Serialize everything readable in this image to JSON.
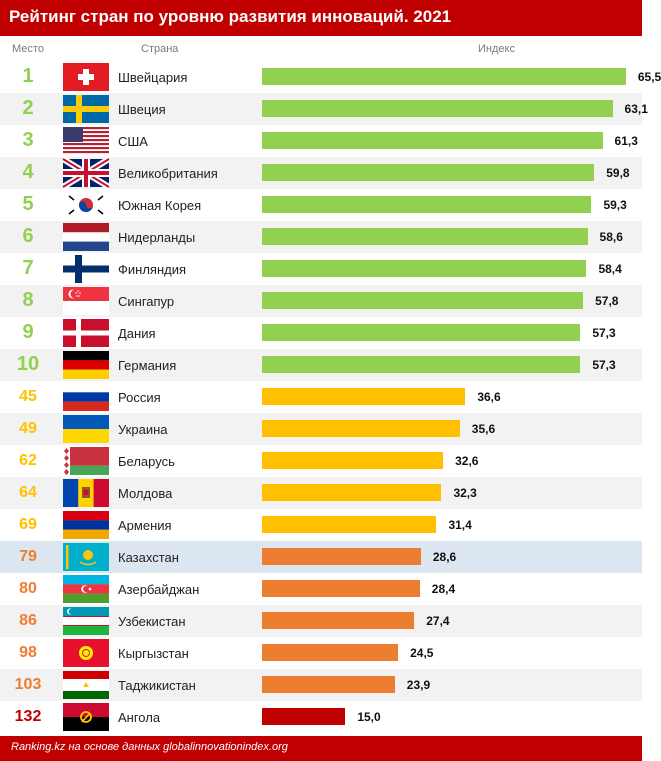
{
  "title": "Рейтинг стран по уровню развития инноваций. 2021",
  "columns": {
    "rank": "Место",
    "country": "Страна",
    "index": "Индекс"
  },
  "footer": "Ranking.kz на основе данных globalinnovationindex.org",
  "colors": {
    "header": "#c00000",
    "green": "#92d050",
    "yellow": "#ffc000",
    "orange": "#ed7d31",
    "red": "#c00000",
    "highlight": "#dce6f0"
  },
  "chart_data": {
    "type": "bar",
    "orientation": "horizontal",
    "title": "Рейтинг стран по уровню развития инноваций. 2021",
    "xlabel": "Индекс",
    "xlim": [
      0,
      72
    ],
    "rows": [
      {
        "rank": "1",
        "country": "Швейцария",
        "value": 65.5,
        "label": "65,5",
        "group": "green",
        "flag": "switzerland-flag"
      },
      {
        "rank": "2",
        "country": "Швеция",
        "value": 63.1,
        "label": "63,1",
        "group": "green",
        "flag": "sweden-flag"
      },
      {
        "rank": "3",
        "country": "США",
        "value": 61.3,
        "label": "61,3",
        "group": "green",
        "flag": "usa-flag"
      },
      {
        "rank": "4",
        "country": "Великобритания",
        "value": 59.8,
        "label": "59,8",
        "group": "green",
        "flag": "uk-flag"
      },
      {
        "rank": "5",
        "country": "Южная Корея",
        "value": 59.3,
        "label": "59,3",
        "group": "green",
        "flag": "south-korea-flag"
      },
      {
        "rank": "6",
        "country": "Нидерланды",
        "value": 58.6,
        "label": "58,6",
        "group": "green",
        "flag": "netherlands-flag"
      },
      {
        "rank": "7",
        "country": "Финляндия",
        "value": 58.4,
        "label": "58,4",
        "group": "green",
        "flag": "finland-flag"
      },
      {
        "rank": "8",
        "country": "Сингапур",
        "value": 57.8,
        "label": "57,8",
        "group": "green",
        "flag": "singapore-flag"
      },
      {
        "rank": "9",
        "country": "Дания",
        "value": 57.3,
        "label": "57,3",
        "group": "green",
        "flag": "denmark-flag"
      },
      {
        "rank": "10",
        "country": "Германия",
        "value": 57.3,
        "label": "57,3",
        "group": "green",
        "flag": "germany-flag"
      },
      {
        "rank": "45",
        "country": "Россия",
        "value": 36.6,
        "label": "36,6",
        "group": "yellow",
        "flag": "russia-flag"
      },
      {
        "rank": "49",
        "country": "Украина",
        "value": 35.6,
        "label": "35,6",
        "group": "yellow",
        "flag": "ukraine-flag"
      },
      {
        "rank": "62",
        "country": "Беларусь",
        "value": 32.6,
        "label": "32,6",
        "group": "yellow",
        "flag": "belarus-flag"
      },
      {
        "rank": "64",
        "country": "Молдова",
        "value": 32.3,
        "label": "32,3",
        "group": "yellow",
        "flag": "moldova-flag"
      },
      {
        "rank": "69",
        "country": "Армения",
        "value": 31.4,
        "label": "31,4",
        "group": "yellow",
        "flag": "armenia-flag"
      },
      {
        "rank": "79",
        "country": "Казахстан",
        "value": 28.6,
        "label": "28,6",
        "group": "orange",
        "flag": "kazakhstan-flag",
        "highlight": true
      },
      {
        "rank": "80",
        "country": "Азербайджан",
        "value": 28.4,
        "label": "28,4",
        "group": "orange",
        "flag": "azerbaijan-flag"
      },
      {
        "rank": "86",
        "country": "Узбекистан",
        "value": 27.4,
        "label": "27,4",
        "group": "orange",
        "flag": "uzbekistan-flag"
      },
      {
        "rank": "98",
        "country": "Кыргызстан",
        "value": 24.5,
        "label": "24,5",
        "group": "orange",
        "flag": "kyrgyzstan-flag"
      },
      {
        "rank": "103",
        "country": "Таджикистан",
        "value": 23.9,
        "label": "23,9",
        "group": "orange",
        "flag": "tajikistan-flag"
      },
      {
        "rank": "132",
        "country": "Ангола",
        "value": 15.0,
        "label": "15,0",
        "group": "red",
        "flag": "angola-flag"
      }
    ]
  }
}
